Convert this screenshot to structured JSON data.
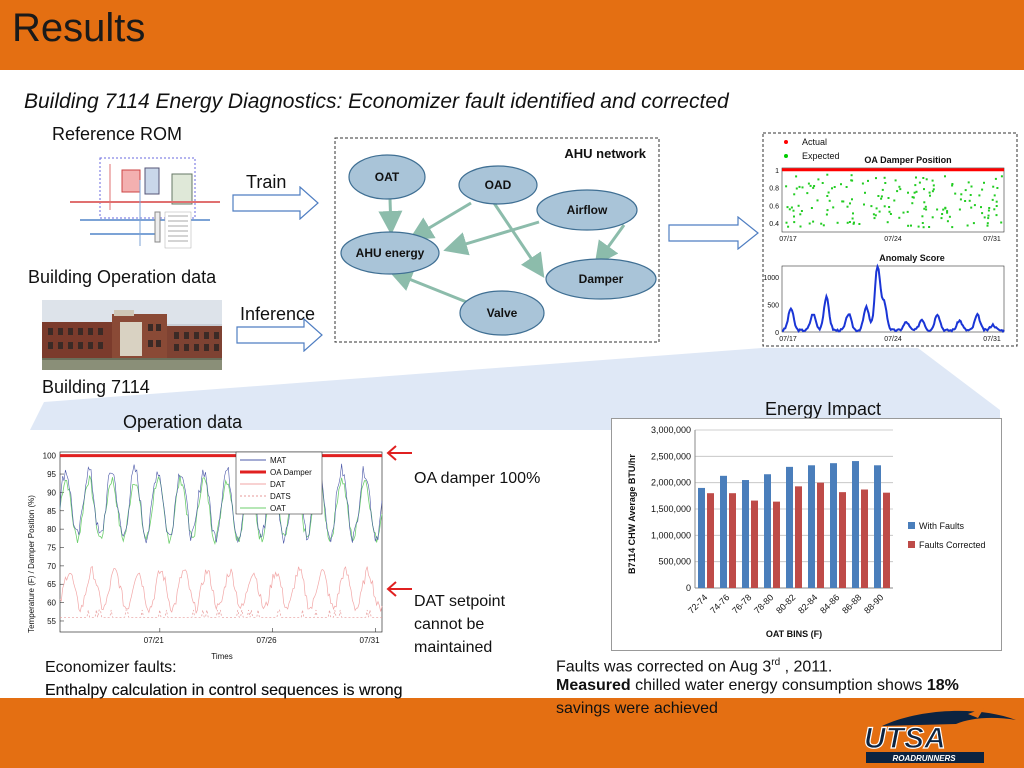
{
  "slide": {
    "title": "Results",
    "subtitle": "Building 7114 Energy Diagnostics: Economizer fault identified and corrected"
  },
  "workflow": {
    "reference_rom_label": "Reference ROM",
    "train_label": "Train",
    "building_operation_label": "Building Operation data",
    "inference_label": "Inference",
    "building_label": "Building 7114"
  },
  "ahu_network": {
    "title": "AHU network",
    "nodes": [
      "OAT",
      "OAD",
      "Airflow",
      "AHU energy",
      "Damper",
      "Valve"
    ]
  },
  "operation_chart": {
    "title": "Operation data",
    "annotation_top": "OA damper 100%",
    "annotation_bottom_lines": [
      "DAT setpoint",
      "cannot be",
      "maintained"
    ],
    "fault_heading": "Economizer faults:",
    "fault_text": "Enthalpy calculation in control sequences is wrong"
  },
  "energy_impact": {
    "title": "Energy Impact",
    "note_prefix": "Faults was corrected on Aug 3",
    "note_sup": "rd",
    "note_suffix": " , 2011.",
    "savings_bold1": "Measured",
    "savings_mid": " chilled water energy consumption shows ",
    "savings_bold2": "18%",
    "savings_end": "savings were achieved"
  },
  "colors": {
    "banner": "#e46f12",
    "with_faults": "#4a7ebb",
    "faults_corrected": "#be4b48",
    "node_fill": "#a9c4d8",
    "node_stroke": "#3f6f93",
    "arrow": "#8cbcab",
    "flow_arrow": "#4f7ec2",
    "annotation_arrow": "#e02020"
  },
  "logo": {
    "text": "UTSA",
    "tagline": "ROADRUNNERS"
  },
  "chart_data": [
    {
      "type": "bar",
      "title": "Energy Impact",
      "xlabel": "OAT BINS (F)",
      "ylabel": "B7114 CHW Average BTU/hr",
      "categories": [
        "72-74",
        "74-76",
        "76-78",
        "78-80",
        "80-82",
        "82-84",
        "84-86",
        "86-88",
        "88-90"
      ],
      "series": [
        {
          "name": "With Faults",
          "values": [
            1900000,
            2130000,
            2050000,
            2160000,
            2300000,
            2330000,
            2370000,
            2410000,
            2330000
          ]
        },
        {
          "name": "Faults Corrected",
          "values": [
            1800000,
            1800000,
            1660000,
            1640000,
            1930000,
            2000000,
            1820000,
            1870000,
            1810000
          ]
        }
      ],
      "ylim": [
        0,
        3000000
      ],
      "yticks": [
        "0",
        "500,000",
        "1,000,000",
        "1,500,000",
        "2,000,000",
        "2,500,000",
        "3,000,000"
      ],
      "legend": "right"
    },
    {
      "type": "line",
      "title": "",
      "xlabel": "Times",
      "ylabel": "Temperature (F) / Damper Position (%)",
      "x_ticks": [
        "07/21",
        "07/26",
        "07/31"
      ],
      "y_ticks": [
        "55",
        "60",
        "65",
        "70",
        "75",
        "80",
        "85",
        "90",
        "95",
        "100"
      ],
      "ylim": [
        52,
        101
      ],
      "series_names": [
        "MAT",
        "OA Damper",
        "DAT",
        "DATS",
        "OAT"
      ],
      "oa_damper_value": 100,
      "legend": "top-right"
    },
    {
      "type": "scatter",
      "title": "OA Damper Position",
      "series_names": [
        "Actual",
        "Expected"
      ],
      "x_ticks": [
        "07/17",
        "07/24",
        "07/31"
      ],
      "y_ticks": [
        "0.4",
        "0.6",
        "0.8",
        "1"
      ],
      "actual_value": 1.0
    },
    {
      "type": "line",
      "title": "Anomaly Score",
      "x_ticks": [
        "07/17",
        "07/24",
        "07/31"
      ],
      "y_ticks": [
        "0",
        "500",
        "1000"
      ]
    }
  ]
}
